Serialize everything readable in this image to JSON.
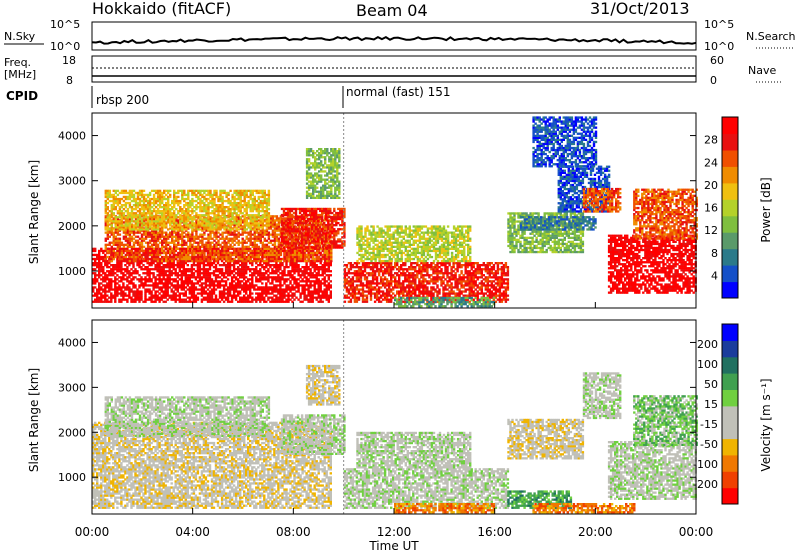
{
  "header": {
    "station": "Hokkaido (fitACF)",
    "beam": "Beam 04",
    "date": "31/Oct/2013"
  },
  "top_strips": {
    "nsky_label": "N.Sky",
    "nsky_ticks": [
      "10^5",
      "10^0"
    ],
    "nsearch_label": "N.Search",
    "nsearch_ticks": [
      "10^5",
      "10^0"
    ],
    "freq_label_1": "Freq.",
    "freq_label_2": "[MHz]",
    "freq_ticks": [
      "18",
      "8"
    ],
    "nave_label": "Nave",
    "nave_ticks": [
      "60",
      "0"
    ],
    "cpid_label": "CPID",
    "cpid_segments": [
      {
        "label": "rbsp 200",
        "start_hour": 0
      },
      {
        "label": "normal (fast) 151",
        "start_hour": 10
      }
    ]
  },
  "chart_data": [
    {
      "type": "heatmap",
      "parameter": "Power",
      "ylabel": "Slant Range [km]",
      "xlabel": "Time UT",
      "x_ticks": [
        "00:00",
        "04:00",
        "08:00",
        "12:00",
        "16:00",
        "20:00",
        "00:00"
      ],
      "xlim": [
        0,
        24
      ],
      "ylim": [
        180,
        4500
      ],
      "y_ticks": [
        1000,
        2000,
        3000,
        4000
      ],
      "colorbar_label": "Power [dB]",
      "colorbar_ticks": [
        "28",
        "24",
        "20",
        "16",
        "12",
        "8",
        "4"
      ],
      "colorbar_colors": [
        "#0000ff",
        "#1450c8",
        "#2a7a8a",
        "#5a9a6a",
        "#7fbf3f",
        "#b4d22a",
        "#f0c010",
        "#f08c00",
        "#f05000",
        "#e81010",
        "#ff0000"
      ],
      "regions": [
        {
          "t0": 0.0,
          "t1": 9.5,
          "r0": 300,
          "r1": 1500,
          "level": 10
        },
        {
          "t0": 0.5,
          "t1": 9.5,
          "r0": 1200,
          "r1": 2200,
          "level": 8
        },
        {
          "t0": 7.5,
          "t1": 10.0,
          "r0": 1500,
          "r1": 2400,
          "level": 9
        },
        {
          "t0": 0.5,
          "t1": 7.0,
          "r0": 1900,
          "r1": 2800,
          "level": 6
        },
        {
          "t0": 8.5,
          "t1": 9.8,
          "r0": 2600,
          "r1": 3700,
          "level": 4
        },
        {
          "t0": 10.0,
          "t1": 16.5,
          "r0": 300,
          "r1": 1200,
          "level": 9
        },
        {
          "t0": 10.5,
          "t1": 15.0,
          "r0": 1200,
          "r1": 2000,
          "level": 5
        },
        {
          "t0": 16.5,
          "t1": 19.5,
          "r0": 1400,
          "r1": 2300,
          "level": 4
        },
        {
          "t0": 17.0,
          "t1": 20.0,
          "r0": 1900,
          "r1": 2200,
          "level": 2
        },
        {
          "t0": 18.5,
          "t1": 20.5,
          "r0": 2300,
          "r1": 3300,
          "level": 1
        },
        {
          "t0": 19.5,
          "t1": 21.0,
          "r0": 2300,
          "r1": 2800,
          "level": 8
        },
        {
          "t0": 17.5,
          "t1": 20.0,
          "r0": 3300,
          "r1": 4400,
          "level": 1
        },
        {
          "t0": 20.5,
          "t1": 24.0,
          "r0": 500,
          "r1": 1800,
          "level": 10
        },
        {
          "t0": 21.5,
          "t1": 24.0,
          "r0": 1700,
          "r1": 2800,
          "level": 8
        },
        {
          "t0": 12.0,
          "t1": 16.0,
          "r0": 200,
          "r1": 400,
          "level": 3
        }
      ]
    },
    {
      "type": "heatmap",
      "parameter": "Velocity",
      "ylabel": "Slant Range [km]",
      "xlabel": "Time UT",
      "x_ticks": [
        "00:00",
        "04:00",
        "08:00",
        "12:00",
        "16:00",
        "20:00",
        "00:00"
      ],
      "xlim": [
        0,
        24
      ],
      "ylim": [
        180,
        4500
      ],
      "y_ticks": [
        1000,
        2000,
        3000,
        4000
      ],
      "colorbar_label": "Velocity [m s⁻¹]",
      "colorbar_ticks": [
        "200",
        "100",
        "50",
        "15",
        "-15",
        "-50",
        "-100",
        "-200"
      ],
      "colorbar_colors": [
        "#ff0000",
        "#f04000",
        "#f07800",
        "#f0b400",
        "#c0c0b8",
        "#c0c0b8",
        "#70d040",
        "#40a050",
        "#207060",
        "#1a3c9c",
        "#0000ff"
      ],
      "regions": [
        {
          "t0": 0.0,
          "t1": 9.5,
          "r0": 300,
          "r1": 2200,
          "level": 4
        },
        {
          "t0": 7.5,
          "t1": 10.0,
          "r0": 1500,
          "r1": 2400,
          "level": 5
        },
        {
          "t0": 0.5,
          "t1": 7.0,
          "r0": 1900,
          "r1": 2800,
          "level": 5
        },
        {
          "t0": 8.5,
          "t1": 9.8,
          "r0": 2600,
          "r1": 3500,
          "level": 4
        },
        {
          "t0": 10.0,
          "t1": 16.5,
          "r0": 300,
          "r1": 1200,
          "level": 5
        },
        {
          "t0": 10.5,
          "t1": 15.0,
          "r0": 1200,
          "r1": 2000,
          "level": 5
        },
        {
          "t0": 16.5,
          "t1": 19.5,
          "r0": 1400,
          "r1": 2300,
          "level": 4
        },
        {
          "t0": 19.5,
          "t1": 21.0,
          "r0": 2300,
          "r1": 3300,
          "level": 5
        },
        {
          "t0": 20.5,
          "t1": 24.0,
          "r0": 500,
          "r1": 1800,
          "level": 5
        },
        {
          "t0": 21.5,
          "t1": 24.0,
          "r0": 1700,
          "r1": 2800,
          "level": 6
        },
        {
          "t0": 16.5,
          "t1": 19.0,
          "r0": 300,
          "r1": 700,
          "level": 7
        },
        {
          "t0": 12.0,
          "t1": 16.0,
          "r0": 200,
          "r1": 400,
          "level": 2
        },
        {
          "t0": 17.5,
          "t1": 21.5,
          "r0": 200,
          "r1": 400,
          "level": 2
        }
      ]
    }
  ]
}
